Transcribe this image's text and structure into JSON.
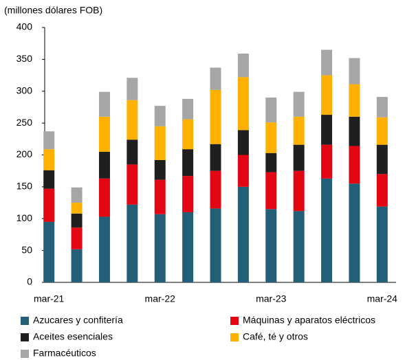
{
  "chart_data": {
    "type": "stacked-bar",
    "title": "(millones dólares FOB)",
    "categories": [
      "mar-21",
      null,
      null,
      null,
      "mar-22",
      null,
      null,
      null,
      "mar-23",
      null,
      null,
      null,
      "mar-24"
    ],
    "series": [
      {
        "name": "Azucares y confitería",
        "color": "#235f77",
        "values": [
          95,
          52,
          103,
          122,
          107,
          110,
          116,
          150,
          115,
          112,
          163,
          155,
          119
        ]
      },
      {
        "name": "Máquinas y aparatos eléctricos",
        "color": "#e30613",
        "values": [
          52,
          34,
          60,
          63,
          54,
          57,
          59,
          50,
          58,
          63,
          53,
          59,
          51
        ]
      },
      {
        "name": "Aceites esenciales",
        "color": "#1f1f1f",
        "values": [
          29,
          22,
          42,
          39,
          31,
          42,
          42,
          39,
          30,
          41,
          47,
          46,
          46
        ]
      },
      {
        "name": "Café, té y otros",
        "color": "#ffb000",
        "values": [
          33,
          17,
          55,
          62,
          53,
          47,
          85,
          83,
          48,
          44,
          62,
          51,
          43
        ]
      },
      {
        "name": "Farmacéuticos",
        "color": "#a6a6a6",
        "values": [
          28,
          24,
          39,
          35,
          32,
          32,
          35,
          37,
          39,
          39,
          40,
          41,
          32
        ]
      }
    ],
    "ylim": [
      0,
      400
    ],
    "yticks": [
      0,
      50,
      100,
      150,
      200,
      250,
      300,
      350,
      400
    ],
    "grid": false
  }
}
